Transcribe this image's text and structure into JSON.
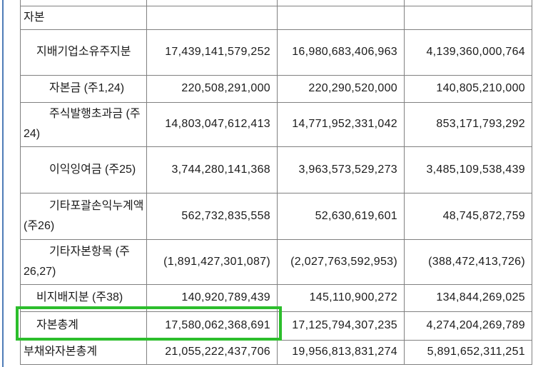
{
  "page": {
    "background": "#ffffff"
  },
  "frame": {
    "left_border_color": "#4f7cb8"
  },
  "highlight": {
    "color": "#2cbe2c",
    "target_row": "자본총계"
  },
  "table": {
    "inner_border_color": "#808080",
    "outer_border_color": "#4a4a4a",
    "columns": 4,
    "rows": [
      {
        "label": "자본",
        "indent": 0,
        "highlighted": false,
        "values": [
          "",
          "",
          ""
        ]
      },
      {
        "label": "지배기업소유주지분",
        "indent": 1,
        "highlighted": false,
        "values": [
          "17,439,141,579,252",
          "16,980,683,406,963",
          "4,139,360,000,764"
        ]
      },
      {
        "label": "자본금 (주1,24)",
        "indent": 2,
        "highlighted": false,
        "values": [
          "220,508,291,000",
          "220,290,520,000",
          "140,805,210,000"
        ]
      },
      {
        "label": "주식발행초과금 (주24)",
        "indent": 2,
        "highlighted": false,
        "values": [
          "14,803,047,612,413",
          "14,771,952,331,042",
          "853,171,793,292"
        ]
      },
      {
        "label": "이익잉여금 (주25)",
        "indent": 2,
        "highlighted": false,
        "values": [
          "3,744,280,141,368",
          "3,963,573,529,273",
          "3,485,109,538,439"
        ]
      },
      {
        "label": "기타포괄손익누계액 (주26)",
        "indent": 2,
        "highlighted": false,
        "values": [
          "562,732,835,558",
          "52,630,619,601",
          "48,745,872,759"
        ]
      },
      {
        "label": "기타자본항목 (주26,27)",
        "indent": 2,
        "highlighted": false,
        "values": [
          "(1,891,427,301,087)",
          "(2,027,763,592,953)",
          "(388,472,413,726)"
        ]
      },
      {
        "label": "비지배지분 (주38)",
        "indent": 1,
        "highlighted": false,
        "values": [
          "140,920,789,439",
          "145,110,900,272",
          "134,844,269,025"
        ]
      },
      {
        "label": "자본총계",
        "indent": 1,
        "highlighted": true,
        "values": [
          "17,580,062,368,691",
          "17,125,794,307,235",
          "4,274,204,269,789"
        ]
      },
      {
        "label": "부채와자본총계",
        "indent": 0,
        "highlighted": false,
        "values": [
          "21,055,222,437,706",
          "19,956,813,831,274",
          "5,891,652,311,251"
        ]
      }
    ]
  }
}
